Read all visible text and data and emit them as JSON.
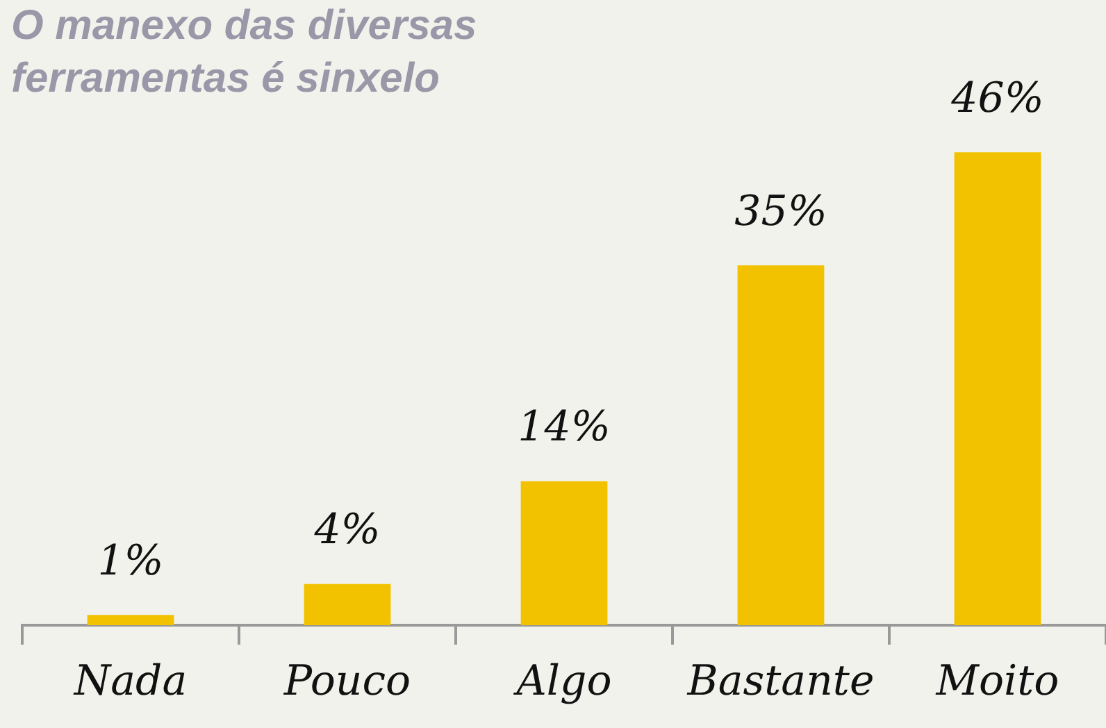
{
  "chart_data": {
    "type": "bar",
    "title": "O manexo das diversas ferramentas é sinxelo",
    "categories": [
      "Nada",
      "Pouco",
      "Algo",
      "Bastante",
      "Moito"
    ],
    "values": [
      1,
      4,
      14,
      35,
      46
    ],
    "value_labels": [
      "1%",
      "4%",
      "14%",
      "35%",
      "46%"
    ],
    "color": "#f2c200",
    "grid": false,
    "legend": false
  }
}
